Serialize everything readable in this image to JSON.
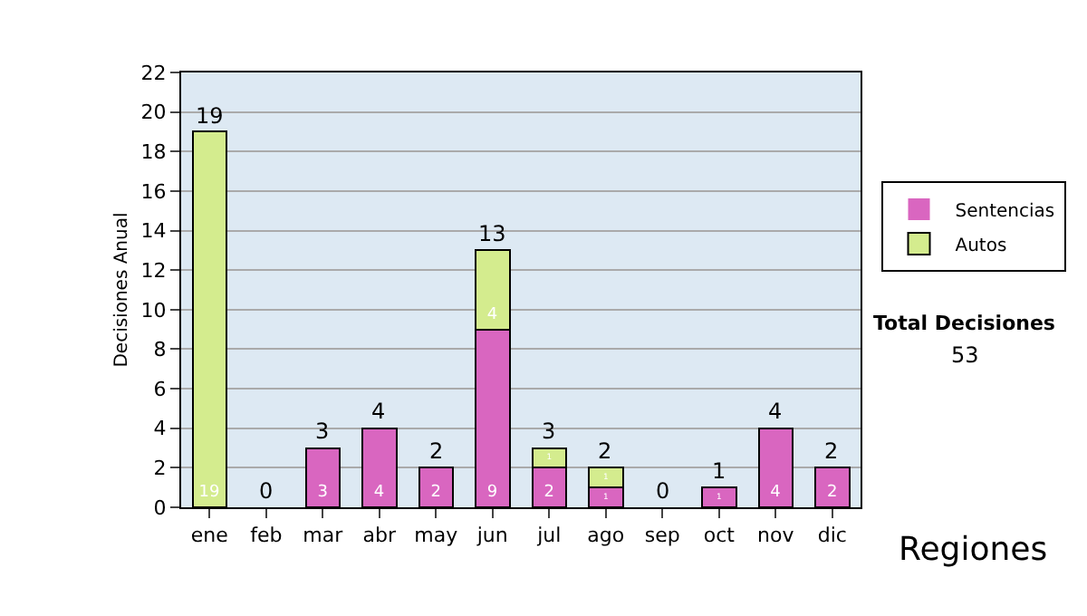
{
  "chart_data": {
    "type": "bar",
    "stacked": true,
    "ylabel": "Decisiones Anual",
    "categories": [
      "ene",
      "feb",
      "mar",
      "abr",
      "may",
      "jun",
      "jul",
      "ago",
      "sep",
      "oct",
      "nov",
      "dic"
    ],
    "series": [
      {
        "name": "Sentencias",
        "color": "#d966c0",
        "values": [
          0,
          0,
          3,
          4,
          2,
          9,
          2,
          1,
          0,
          1,
          4,
          2
        ],
        "value_labels": [
          null,
          null,
          "3",
          "4",
          "2",
          "9",
          "2",
          "1",
          null,
          "1",
          "4",
          "2"
        ]
      },
      {
        "name": "Autos",
        "color": "#d4ec8e",
        "values": [
          19,
          0,
          0,
          0,
          0,
          4,
          1,
          1,
          0,
          0,
          0,
          0
        ],
        "value_labels": [
          "19",
          null,
          null,
          null,
          null,
          "4",
          "1",
          "1",
          null,
          null,
          null,
          null
        ]
      }
    ],
    "totals": [
      "19",
      "0",
      "3",
      "4",
      "2",
      "13",
      "3",
      "2",
      "0",
      "1",
      "4",
      "2"
    ],
    "ylim": [
      0,
      22
    ],
    "yticks": [
      0,
      2,
      4,
      6,
      8,
      10,
      12,
      14,
      16,
      18,
      20,
      22
    ],
    "grid": "y",
    "legend": "right",
    "annotations": [
      "Total Decisiones",
      "53",
      "Regiones"
    ]
  }
}
